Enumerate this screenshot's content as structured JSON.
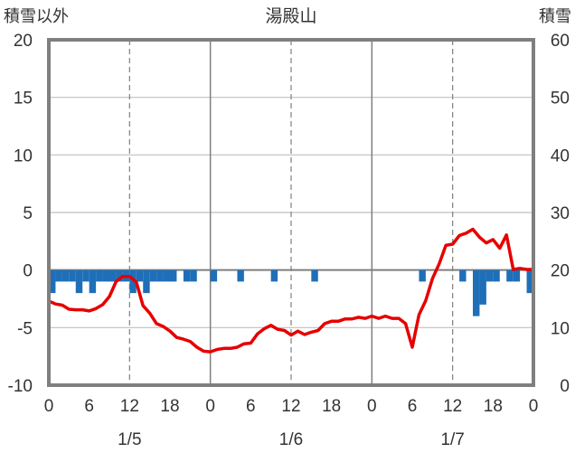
{
  "chart_data": {
    "type": "bar+line",
    "title": "湯殿山",
    "left_axis": {
      "label": "積雪以外",
      "ylim": [
        -10,
        20
      ],
      "ticks": [
        20,
        15,
        10,
        5,
        0,
        -5,
        -10
      ],
      "tick_labels": [
        "20",
        "15",
        "10",
        "5",
        "0",
        "-5",
        "-10"
      ]
    },
    "right_axis": {
      "label": "積雪",
      "ylim": [
        0,
        60
      ],
      "ticks": [
        60,
        50,
        40,
        30,
        20,
        10,
        0
      ],
      "tick_labels": [
        "60",
        "50",
        "40",
        "30",
        "20",
        "10",
        "0"
      ]
    },
    "x_axis": {
      "xlim": [
        0,
        72
      ],
      "hour_ticks": [
        0,
        6,
        12,
        18,
        24,
        30,
        36,
        42,
        48,
        54,
        60,
        66,
        72
      ],
      "hour_labels": [
        "0",
        "6",
        "12",
        "18",
        "0",
        "6",
        "12",
        "18",
        "0",
        "6",
        "12",
        "18",
        "0"
      ],
      "day_separators": [
        24,
        48
      ],
      "dashed_gridlines": [
        12,
        36,
        60
      ],
      "date_positions": [
        12,
        36,
        60
      ],
      "date_labels": [
        "1/5",
        "1/6",
        "1/7"
      ]
    },
    "grid": "horizontal at each left tick; vertical solid at 0h of each day, dashed at 12h",
    "series": [
      {
        "kind": "bar",
        "axis": "left",
        "color": "#1f6fb8",
        "bars": [
          {
            "x": 0,
            "value": -2
          },
          {
            "x": 1,
            "value": -1
          },
          {
            "x": 2,
            "value": -1
          },
          {
            "x": 3,
            "value": -1
          },
          {
            "x": 4,
            "value": -2
          },
          {
            "x": 5,
            "value": -1
          },
          {
            "x": 6,
            "value": -2
          },
          {
            "x": 7,
            "value": -1
          },
          {
            "x": 8,
            "value": -1
          },
          {
            "x": 9,
            "value": -1
          },
          {
            "x": 10,
            "value": -1
          },
          {
            "x": 11,
            "value": -1
          },
          {
            "x": 12,
            "value": -2
          },
          {
            "x": 13,
            "value": -1
          },
          {
            "x": 14,
            "value": -2
          },
          {
            "x": 15,
            "value": -1
          },
          {
            "x": 16,
            "value": -1
          },
          {
            "x": 17,
            "value": -1
          },
          {
            "x": 18,
            "value": -1
          },
          {
            "x": 20,
            "value": -1
          },
          {
            "x": 21,
            "value": -1
          },
          {
            "x": 24,
            "value": -1
          },
          {
            "x": 28,
            "value": -1
          },
          {
            "x": 33,
            "value": -1
          },
          {
            "x": 39,
            "value": -1
          },
          {
            "x": 55,
            "value": -1
          },
          {
            "x": 61,
            "value": -1
          },
          {
            "x": 63,
            "value": -4
          },
          {
            "x": 64,
            "value": -3
          },
          {
            "x": 65,
            "value": -1
          },
          {
            "x": 66,
            "value": -1
          },
          {
            "x": 68,
            "value": -1
          },
          {
            "x": 69,
            "value": -1
          },
          {
            "x": 71,
            "value": -2
          }
        ]
      },
      {
        "kind": "line",
        "axis": "right",
        "color": "#e60000",
        "x": [
          0,
          1,
          2,
          3,
          4,
          5,
          6,
          7,
          8,
          9,
          10,
          11,
          12,
          13,
          14,
          15,
          16,
          17,
          18,
          19,
          20,
          21,
          22,
          23,
          24,
          25,
          26,
          27,
          28,
          29,
          30,
          31,
          32,
          33,
          34,
          35,
          36,
          37,
          38,
          39,
          40,
          41,
          42,
          43,
          44,
          45,
          46,
          47,
          48,
          49,
          50,
          51,
          52,
          53,
          54,
          55,
          56,
          57,
          58,
          59,
          60,
          61,
          62,
          63,
          64,
          65,
          66,
          67,
          68,
          69,
          70,
          71,
          72
        ],
        "values": [
          14.6,
          14.1,
          13.9,
          13.2,
          13.1,
          13.1,
          12.9,
          13.3,
          14.0,
          15.4,
          18.0,
          18.9,
          18.9,
          17.9,
          13.8,
          12.5,
          10.7,
          10.2,
          9.4,
          8.3,
          8.0,
          7.6,
          6.6,
          5.9,
          5.8,
          6.2,
          6.4,
          6.4,
          6.6,
          7.2,
          7.3,
          8.9,
          9.8,
          10.4,
          9.7,
          9.5,
          8.7,
          9.4,
          8.8,
          9.2,
          9.5,
          10.7,
          11.1,
          11.1,
          11.5,
          11.5,
          11.8,
          11.6,
          12.0,
          11.6,
          12.0,
          11.6,
          11.6,
          10.7,
          6.6,
          12.2,
          14.7,
          18.5,
          21.1,
          24.3,
          24.5,
          26.0,
          26.4,
          27.1,
          25.7,
          24.7,
          25.3,
          23.8,
          26.1,
          20.1,
          20.3,
          20.1,
          20.1
        ]
      }
    ]
  }
}
